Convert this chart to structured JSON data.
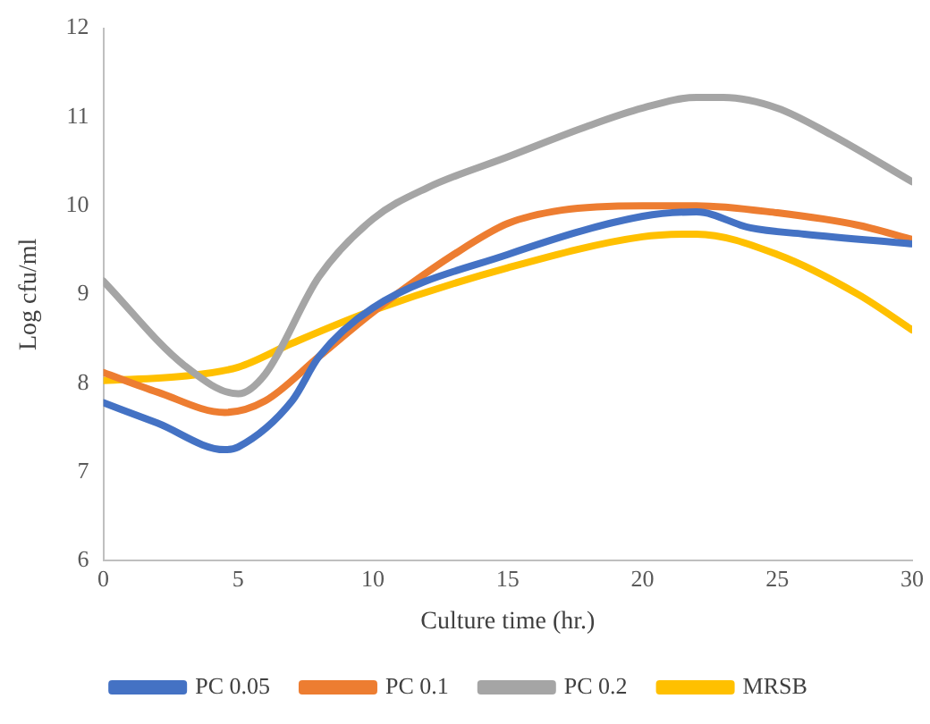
{
  "chart_data": {
    "type": "line",
    "xlabel": "Culture time (hr.)",
    "ylabel": "Log cfu/ml",
    "xlim": [
      0,
      30
    ],
    "xticks": [
      0,
      5,
      10,
      15,
      20,
      25,
      30
    ],
    "ylim": [
      6,
      12
    ],
    "yticks": [
      6,
      7,
      8,
      9,
      10,
      11,
      12
    ],
    "grid": false,
    "legend": "bottom",
    "marker": "none",
    "line_style": "solid",
    "series": [
      {
        "name": "PC 0.05",
        "color": "#4472c4",
        "x": [
          0,
          2,
          4.5,
          5,
          7,
          8,
          10,
          15,
          20,
          22,
          24,
          26,
          30
        ],
        "values": [
          7.78,
          7.55,
          7.25,
          7.28,
          7.8,
          8.3,
          8.85,
          9.45,
          9.88,
          9.93,
          9.75,
          9.68,
          9.57
        ]
      },
      {
        "name": "PC 0.1",
        "color": "#ed7d31",
        "x": [
          0,
          2,
          4.5,
          6,
          8,
          10,
          13,
          15,
          17,
          20,
          22,
          25,
          28,
          30
        ],
        "values": [
          8.12,
          7.9,
          7.67,
          7.8,
          8.3,
          8.8,
          9.45,
          9.8,
          9.95,
          10,
          10,
          9.92,
          9.78,
          9.62
        ]
      },
      {
        "name": "PC 0.2",
        "color": "#a5a5a5",
        "x": [
          0,
          3,
          5,
          6,
          8,
          10,
          12,
          15,
          18,
          20,
          22,
          23,
          25,
          27,
          30
        ],
        "values": [
          9.15,
          8.2,
          7.88,
          8.1,
          9.2,
          9.85,
          10.2,
          10.55,
          10.9,
          11.1,
          11.22,
          11.22,
          11.1,
          10.8,
          10.27
        ]
      },
      {
        "name": "MRSB",
        "color": "#ffc000",
        "x": [
          0,
          3,
          5,
          7,
          10,
          15,
          20,
          22,
          25,
          28,
          30
        ],
        "values": [
          8.03,
          8.08,
          8.18,
          8.45,
          8.82,
          9.3,
          9.65,
          9.68,
          9.45,
          9,
          8.6
        ]
      }
    ]
  }
}
